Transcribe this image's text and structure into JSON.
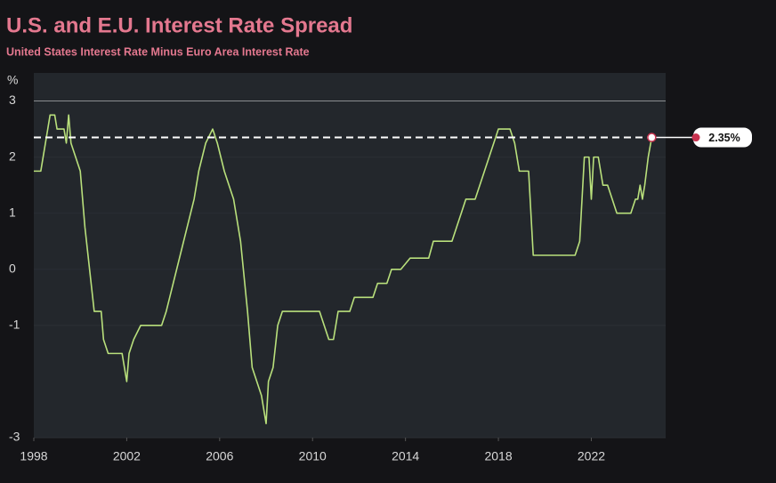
{
  "chart_data": {
    "type": "line",
    "title": "U.S. and E.U. Interest Rate Spread",
    "subtitle": "United States Interest Rate Minus Euro Area Interest Rate",
    "y_label": "%",
    "xlim": [
      1998,
      2025.2
    ],
    "xticks": [
      1998,
      2002,
      2006,
      2010,
      2014,
      2018,
      2022
    ],
    "ylim": [
      -3,
      3.5
    ],
    "yticks": [
      -3,
      -1,
      0,
      1,
      2,
      3
    ],
    "grid": true,
    "series": [
      {
        "color": "#b9e07c",
        "x": [
          1998.0,
          1998.3,
          1998.5,
          1998.6,
          1998.7,
          1998.9,
          1999.0,
          1999.3,
          1999.4,
          1999.5,
          1999.6,
          1999.8,
          2000.0,
          2000.2,
          2000.4,
          2000.6,
          2000.9,
          2001.0,
          2001.2,
          2001.8,
          2002.0,
          2002.1,
          2002.3,
          2002.6,
          2003.5,
          2003.7,
          2004.0,
          2004.3,
          2004.6,
          2004.9,
          2005.1,
          2005.4,
          2005.7,
          2005.9,
          2006.2,
          2006.4,
          2006.6,
          2006.9,
          2007.2,
          2007.4,
          2007.6,
          2007.8,
          2008.0,
          2008.1,
          2008.3,
          2008.5,
          2008.7,
          2010.3,
          2010.5,
          2010.7,
          2010.9,
          2011.0,
          2011.1,
          2011.6,
          2011.8,
          2012.6,
          2012.8,
          2013.2,
          2013.4,
          2013.8,
          2014.0,
          2014.2,
          2015.0,
          2015.2,
          2016.0,
          2016.2,
          2016.4,
          2016.6,
          2017.0,
          2017.2,
          2017.4,
          2017.6,
          2017.8,
          2018.0,
          2018.5,
          2018.7,
          2018.9,
          2019.3,
          2019.5,
          2021.3,
          2021.5,
          2021.7,
          2021.9,
          2022.0,
          2022.1,
          2022.3,
          2022.5,
          2022.7,
          2022.9,
          2023.1,
          2023.7,
          2023.9,
          2024.0,
          2024.1,
          2024.2,
          2024.3,
          2024.45,
          2024.6
        ],
        "values": [
          1.75,
          1.75,
          2.25,
          2.5,
          2.75,
          2.75,
          2.5,
          2.5,
          2.25,
          2.75,
          2.25,
          2.0,
          1.75,
          0.75,
          0,
          -0.75,
          -0.75,
          -1.25,
          -1.5,
          -1.5,
          -2.0,
          -1.5,
          -1.25,
          -1.0,
          -1.0,
          -0.75,
          -0.25,
          0.25,
          0.75,
          1.25,
          1.75,
          2.25,
          2.5,
          2.25,
          1.75,
          1.5,
          1.25,
          0.5,
          -0.75,
          -1.75,
          -2.0,
          -2.25,
          -2.75,
          -2.0,
          -1.75,
          -1.0,
          -0.75,
          -0.75,
          -1.0,
          -1.25,
          -1.25,
          -1.0,
          -0.75,
          -0.75,
          -0.5,
          -0.5,
          -0.25,
          -0.25,
          0,
          0,
          0.1,
          0.2,
          0.2,
          0.5,
          0.5,
          0.75,
          1.0,
          1.25,
          1.25,
          1.5,
          1.75,
          2.0,
          2.25,
          2.5,
          2.5,
          2.25,
          1.75,
          1.75,
          0.25,
          0.25,
          0.5,
          2.0,
          2.0,
          1.25,
          2.0,
          2.0,
          1.5,
          1.5,
          1.25,
          1.0,
          1.0,
          1.25,
          1.25,
          1.5,
          1.25,
          1.5,
          2.0,
          2.35
        ]
      }
    ],
    "reference_line": {
      "value": 2.35,
      "label": "2.35%"
    }
  }
}
